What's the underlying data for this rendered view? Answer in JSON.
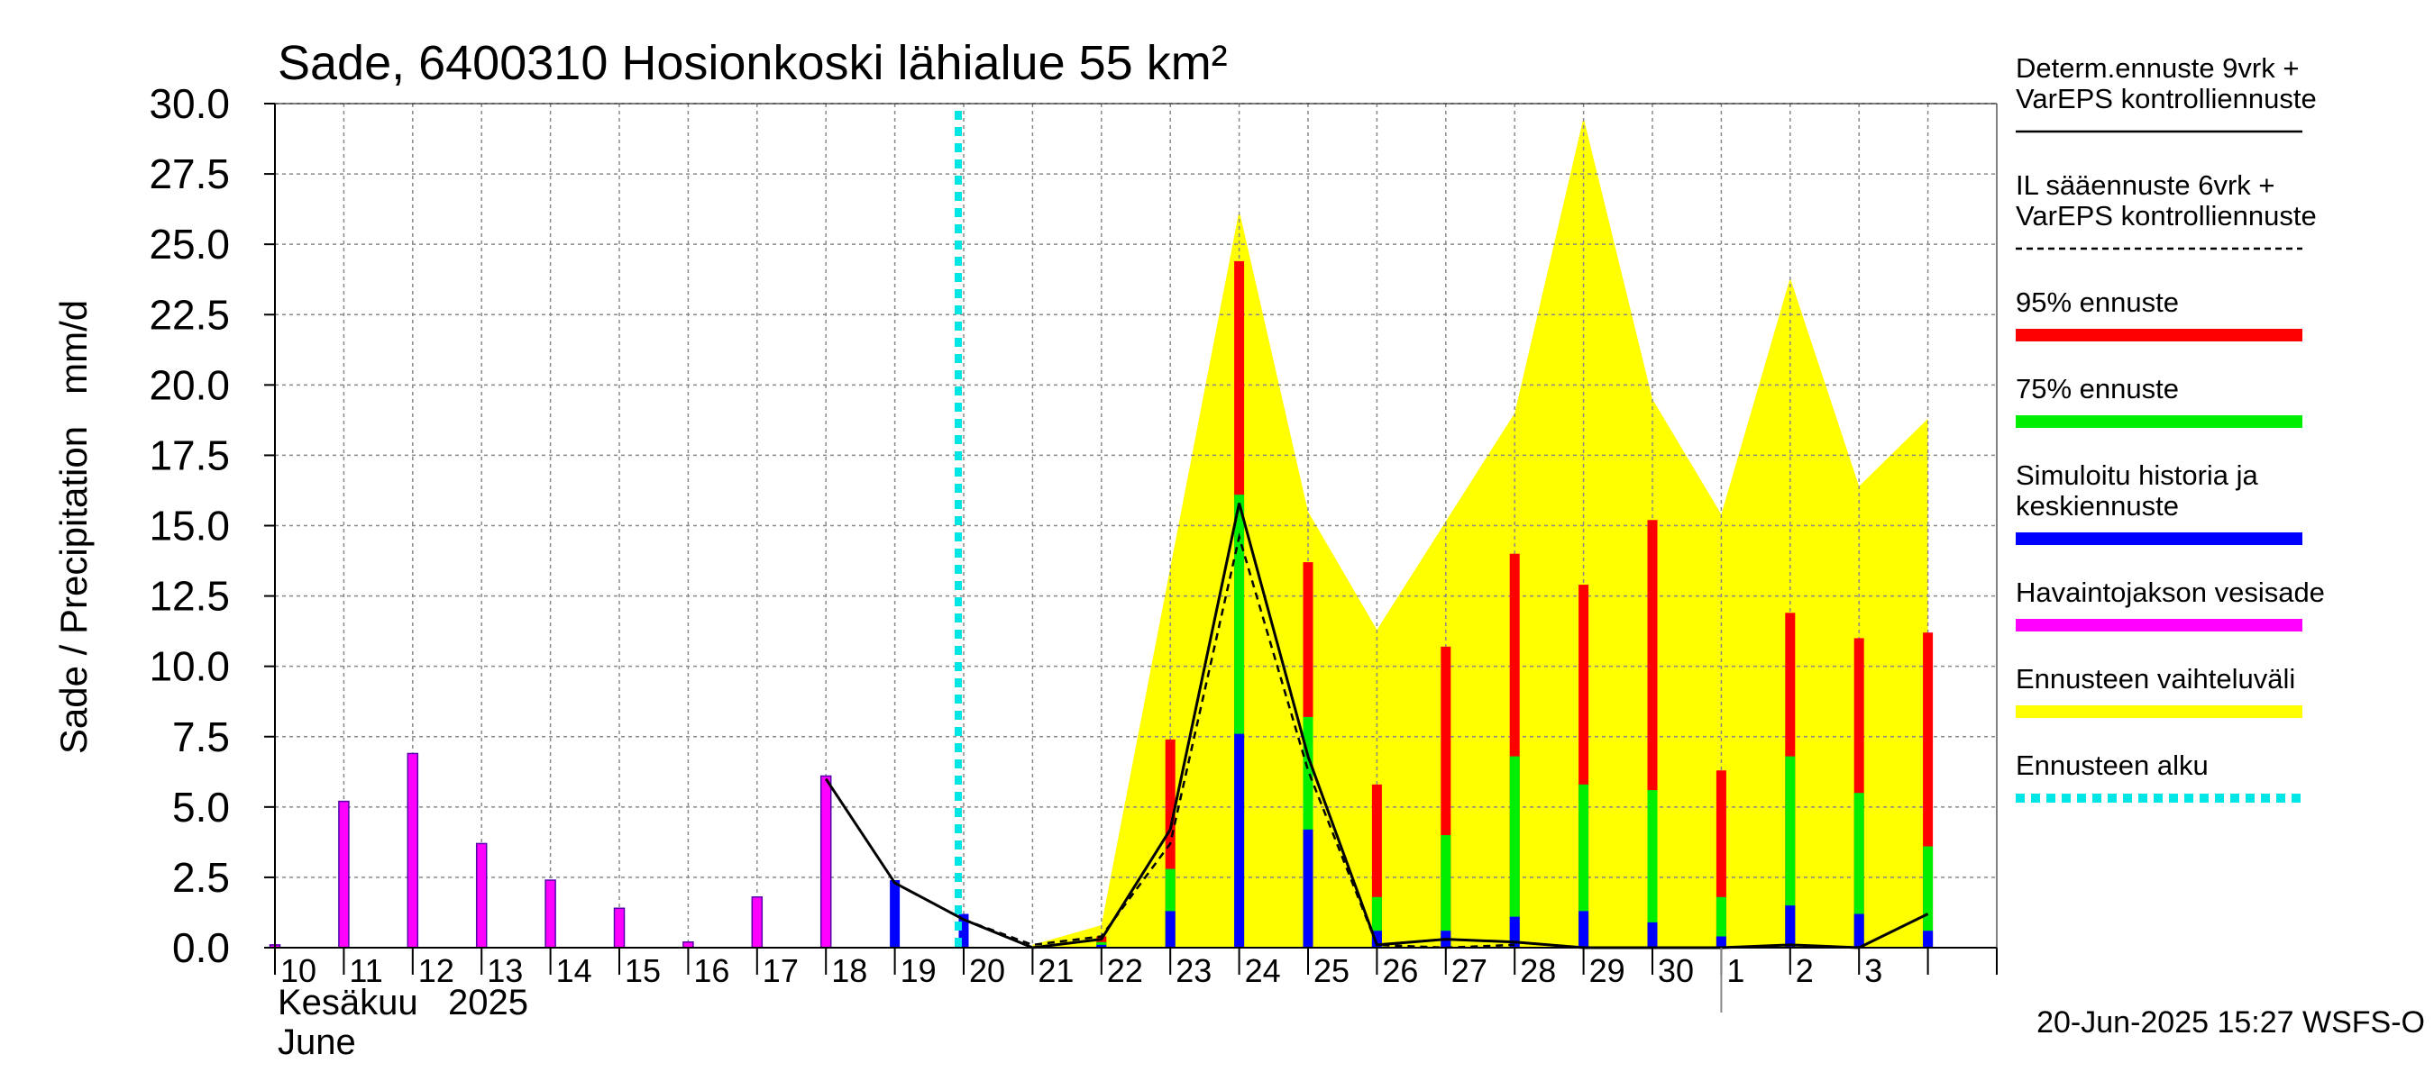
{
  "chart_data": {
    "type": "bar",
    "title": "Sade, 6400310 Hosionkoski lähialue 55 km²",
    "ylabel": "Sade / Precipitation   mm/d",
    "ylim": [
      0,
      30
    ],
    "yticks": [
      "0.0",
      "2.5",
      "5.0",
      "7.5",
      "10.0",
      "12.5",
      "15.0",
      "17.5",
      "20.0",
      "22.5",
      "25.0",
      "27.5",
      "30.0"
    ],
    "grid": true,
    "x_day_labels": [
      "10",
      "11",
      "12",
      "13",
      "14",
      "15",
      "16",
      "17",
      "18",
      "19",
      "20",
      "21",
      "22",
      "23",
      "24",
      "25",
      "26",
      "27",
      "28",
      "29",
      "30",
      "1",
      "2",
      "3"
    ],
    "x_month_fi": "Kesäkuu   2025",
    "x_month_en": "June",
    "footer": "20-Jun-2025 15:27 WSFS-O",
    "forecast_start_day": 20,
    "colors": {
      "p95": "#ff0000",
      "p75": "#00ee00",
      "mean": "#0000ff",
      "observed": "#ff00ff",
      "range": "#ffff00",
      "forecast_start": "#00e5e5",
      "line": "#000000"
    },
    "observed": [
      {
        "day": 10,
        "value": 0.1
      },
      {
        "day": 11,
        "value": 5.2
      },
      {
        "day": 12,
        "value": 6.9
      },
      {
        "day": 13,
        "value": 3.7
      },
      {
        "day": 14,
        "value": 2.4
      },
      {
        "day": 15,
        "value": 1.4
      },
      {
        "day": 16,
        "value": 0.2
      },
      {
        "day": 17,
        "value": 1.8
      },
      {
        "day": 18,
        "value": 6.1
      }
    ],
    "simulated_history": [
      {
        "day": 19,
        "value": 2.4
      },
      {
        "day": 20,
        "value": 1.2
      }
    ],
    "forecast_bars": [
      {
        "day": 22,
        "p95": 0.4,
        "p75": 0.2,
        "mean": 0.1
      },
      {
        "day": 23,
        "p95": 7.4,
        "p75": 2.8,
        "mean": 1.3
      },
      {
        "day": 24,
        "p95": 24.4,
        "p75": 16.1,
        "mean": 7.6
      },
      {
        "day": 25,
        "p95": 13.7,
        "p75": 8.2,
        "mean": 4.2
      },
      {
        "day": 26,
        "p95": 5.8,
        "p75": 1.8,
        "mean": 0.6
      },
      {
        "day": 27,
        "p95": 10.7,
        "p75": 4.0,
        "mean": 0.6
      },
      {
        "day": 28,
        "p95": 14.0,
        "p75": 6.8,
        "mean": 1.1
      },
      {
        "day": 29,
        "p95": 12.9,
        "p75": 5.8,
        "mean": 1.3
      },
      {
        "day": 30,
        "p95": 15.2,
        "p75": 5.6,
        "mean": 0.9
      },
      {
        "day": 31,
        "p95": 6.3,
        "p75": 1.8,
        "mean": 0.4
      },
      {
        "day": 32,
        "p95": 11.9,
        "p75": 6.8,
        "mean": 1.5
      },
      {
        "day": 33,
        "p95": 11.0,
        "p75": 5.5,
        "mean": 1.2
      },
      {
        "day": 34,
        "p95": 11.2,
        "p75": 3.6,
        "mean": 0.6
      }
    ],
    "range_upper": [
      {
        "day": 21,
        "value": 0.1
      },
      {
        "day": 22,
        "value": 0.8
      },
      {
        "day": 24,
        "value": 26.2
      },
      {
        "day": 25,
        "value": 15.5
      },
      {
        "day": 26,
        "value": 11.3
      },
      {
        "day": 28,
        "value": 19.0
      },
      {
        "day": 29,
        "value": 29.5
      },
      {
        "day": 30,
        "value": 19.5
      },
      {
        "day": 31,
        "value": 15.4
      },
      {
        "day": 32,
        "value": 23.8
      },
      {
        "day": 33,
        "value": 16.4
      },
      {
        "day": 34,
        "value": 18.8
      }
    ],
    "determ_line": [
      {
        "day": 18,
        "value": 6.0
      },
      {
        "day": 19,
        "value": 2.3
      },
      {
        "day": 20,
        "value": 1.0
      },
      {
        "day": 21,
        "value": 0.0
      },
      {
        "day": 22,
        "value": 0.3
      },
      {
        "day": 23,
        "value": 4.2
      },
      {
        "day": 24,
        "value": 15.8
      },
      {
        "day": 25,
        "value": 6.8
      },
      {
        "day": 26,
        "value": 0.1
      },
      {
        "day": 27,
        "value": 0.3
      },
      {
        "day": 28,
        "value": 0.2
      },
      {
        "day": 29,
        "value": 0.0
      },
      {
        "day": 30,
        "value": 0.0
      },
      {
        "day": 31,
        "value": 0.0
      },
      {
        "day": 32,
        "value": 0.1
      },
      {
        "day": 33,
        "value": 0.0
      },
      {
        "day": 34,
        "value": 1.2
      }
    ],
    "il_line": [
      {
        "day": 20,
        "value": 1.0
      },
      {
        "day": 21,
        "value": 0.1
      },
      {
        "day": 22,
        "value": 0.4
      },
      {
        "day": 23,
        "value": 3.7
      },
      {
        "day": 24,
        "value": 14.6
      },
      {
        "day": 25,
        "value": 6.3
      },
      {
        "day": 26,
        "value": 0.1
      },
      {
        "day": 27,
        "value": 0.0
      },
      {
        "day": 28,
        "value": 0.1
      }
    ],
    "legend": [
      {
        "label": "Determ.ennuste 9vrk +\nVarEPS kontrolliennuste",
        "style": "solid-line"
      },
      {
        "label": "IL sääennuste 6vrk  +\n  VarEPS kontrolliennuste",
        "style": "dashed-line"
      },
      {
        "label": "95% ennuste",
        "style": "bar",
        "color": "#ff0000"
      },
      {
        "label": "75% ennuste",
        "style": "bar",
        "color": "#00ee00"
      },
      {
        "label": "Simuloitu historia ja\nkeskiennuste",
        "style": "bar",
        "color": "#0000ff"
      },
      {
        "label": "Havaintojakson vesisade",
        "style": "bar",
        "color": "#ff00ff"
      },
      {
        "label": "Ennusteen vaihteluväli",
        "style": "bar",
        "color": "#ffff00"
      },
      {
        "label": "Ennusteen alku",
        "style": "dotted",
        "color": "#00e5e5"
      }
    ]
  }
}
